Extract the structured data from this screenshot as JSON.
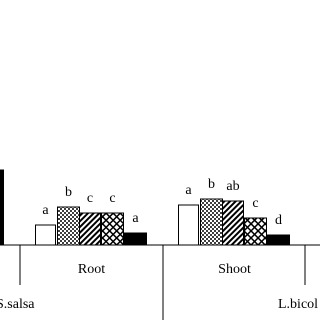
{
  "chart_data": {
    "type": "bar",
    "categories": [
      null,
      "Root",
      "Shoot",
      null
    ],
    "groups": [
      "S.salsa",
      "L.bicol"
    ],
    "ylim": [
      0,
      80
    ],
    "series": [
      {
        "pattern": "none",
        "color": "#ffffff",
        "values": [
          null,
          20,
          40,
          null
        ],
        "value_labels": [
          null,
          "a",
          "a",
          null
        ]
      },
      {
        "pattern": "dots",
        "color": "#000000",
        "values": [
          null,
          38,
          46,
          null
        ],
        "value_labels": [
          null,
          "b",
          "b",
          null
        ]
      },
      {
        "pattern": "diagonal",
        "color": "#000000",
        "values": [
          null,
          32,
          44,
          null
        ],
        "value_labels": [
          null,
          "c",
          "ab",
          null
        ]
      },
      {
        "pattern": "cross",
        "color": "#000000",
        "values": [
          null,
          32,
          27,
          null
        ],
        "value_labels": [
          null,
          "c",
          "c",
          null
        ]
      },
      {
        "pattern": "solid",
        "color": "#000000",
        "values": [
          75,
          12,
          10,
          null
        ],
        "value_labels": [
          null,
          "a",
          "d",
          null
        ]
      }
    ]
  }
}
